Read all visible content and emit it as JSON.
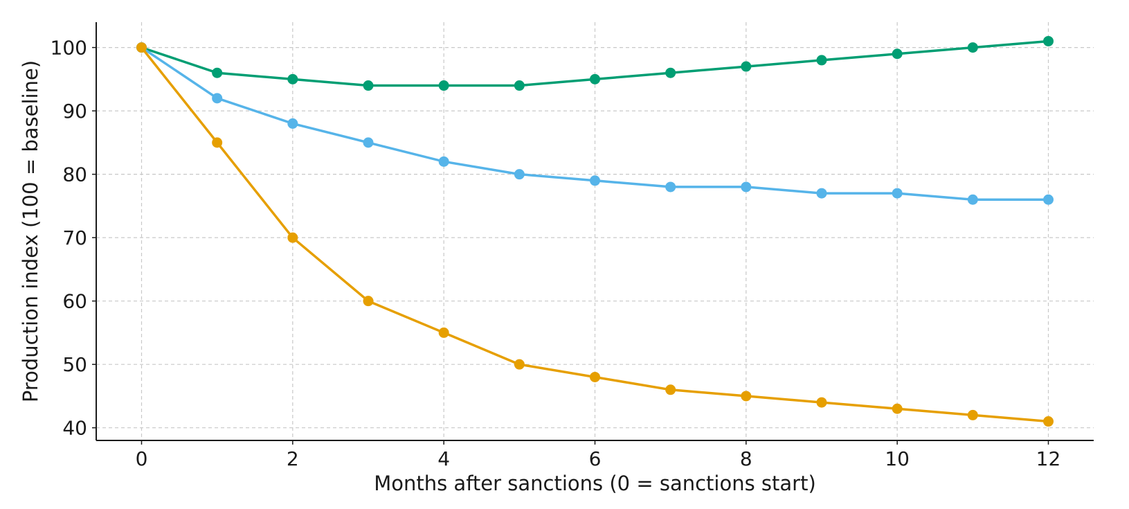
{
  "chart_data": {
    "type": "line",
    "title": "",
    "xlabel": "Months after sanctions (0 = sanctions start)",
    "ylabel": "Production index (100 = baseline)",
    "x": [
      0,
      1,
      2,
      3,
      4,
      5,
      6,
      7,
      8,
      9,
      10,
      11,
      12
    ],
    "xlim": [
      -0.6,
      12.6
    ],
    "ylim": [
      38,
      104
    ],
    "xticks": [
      0,
      2,
      4,
      6,
      8,
      10,
      12
    ],
    "yticks": [
      40,
      50,
      60,
      70,
      80,
      90,
      100
    ],
    "xtick_labels": [
      "0",
      "2",
      "4",
      "6",
      "8",
      "10",
      "12"
    ],
    "ytick_labels": [
      "40",
      "50",
      "60",
      "70",
      "80",
      "90",
      "100"
    ],
    "grid": true,
    "legend": "none",
    "series": [
      {
        "color": "#009e73",
        "values": [
          100,
          96,
          95,
          94,
          94,
          94,
          95,
          96,
          97,
          98,
          99,
          100,
          101
        ]
      },
      {
        "color": "#56b4e9",
        "values": [
          100,
          92,
          88,
          85,
          82,
          80,
          79,
          78,
          78,
          77,
          77,
          76,
          76
        ]
      },
      {
        "color": "#e69f00",
        "values": [
          100,
          85,
          70,
          60,
          55,
          50,
          48,
          46,
          45,
          44,
          43,
          42,
          41
        ]
      }
    ]
  }
}
